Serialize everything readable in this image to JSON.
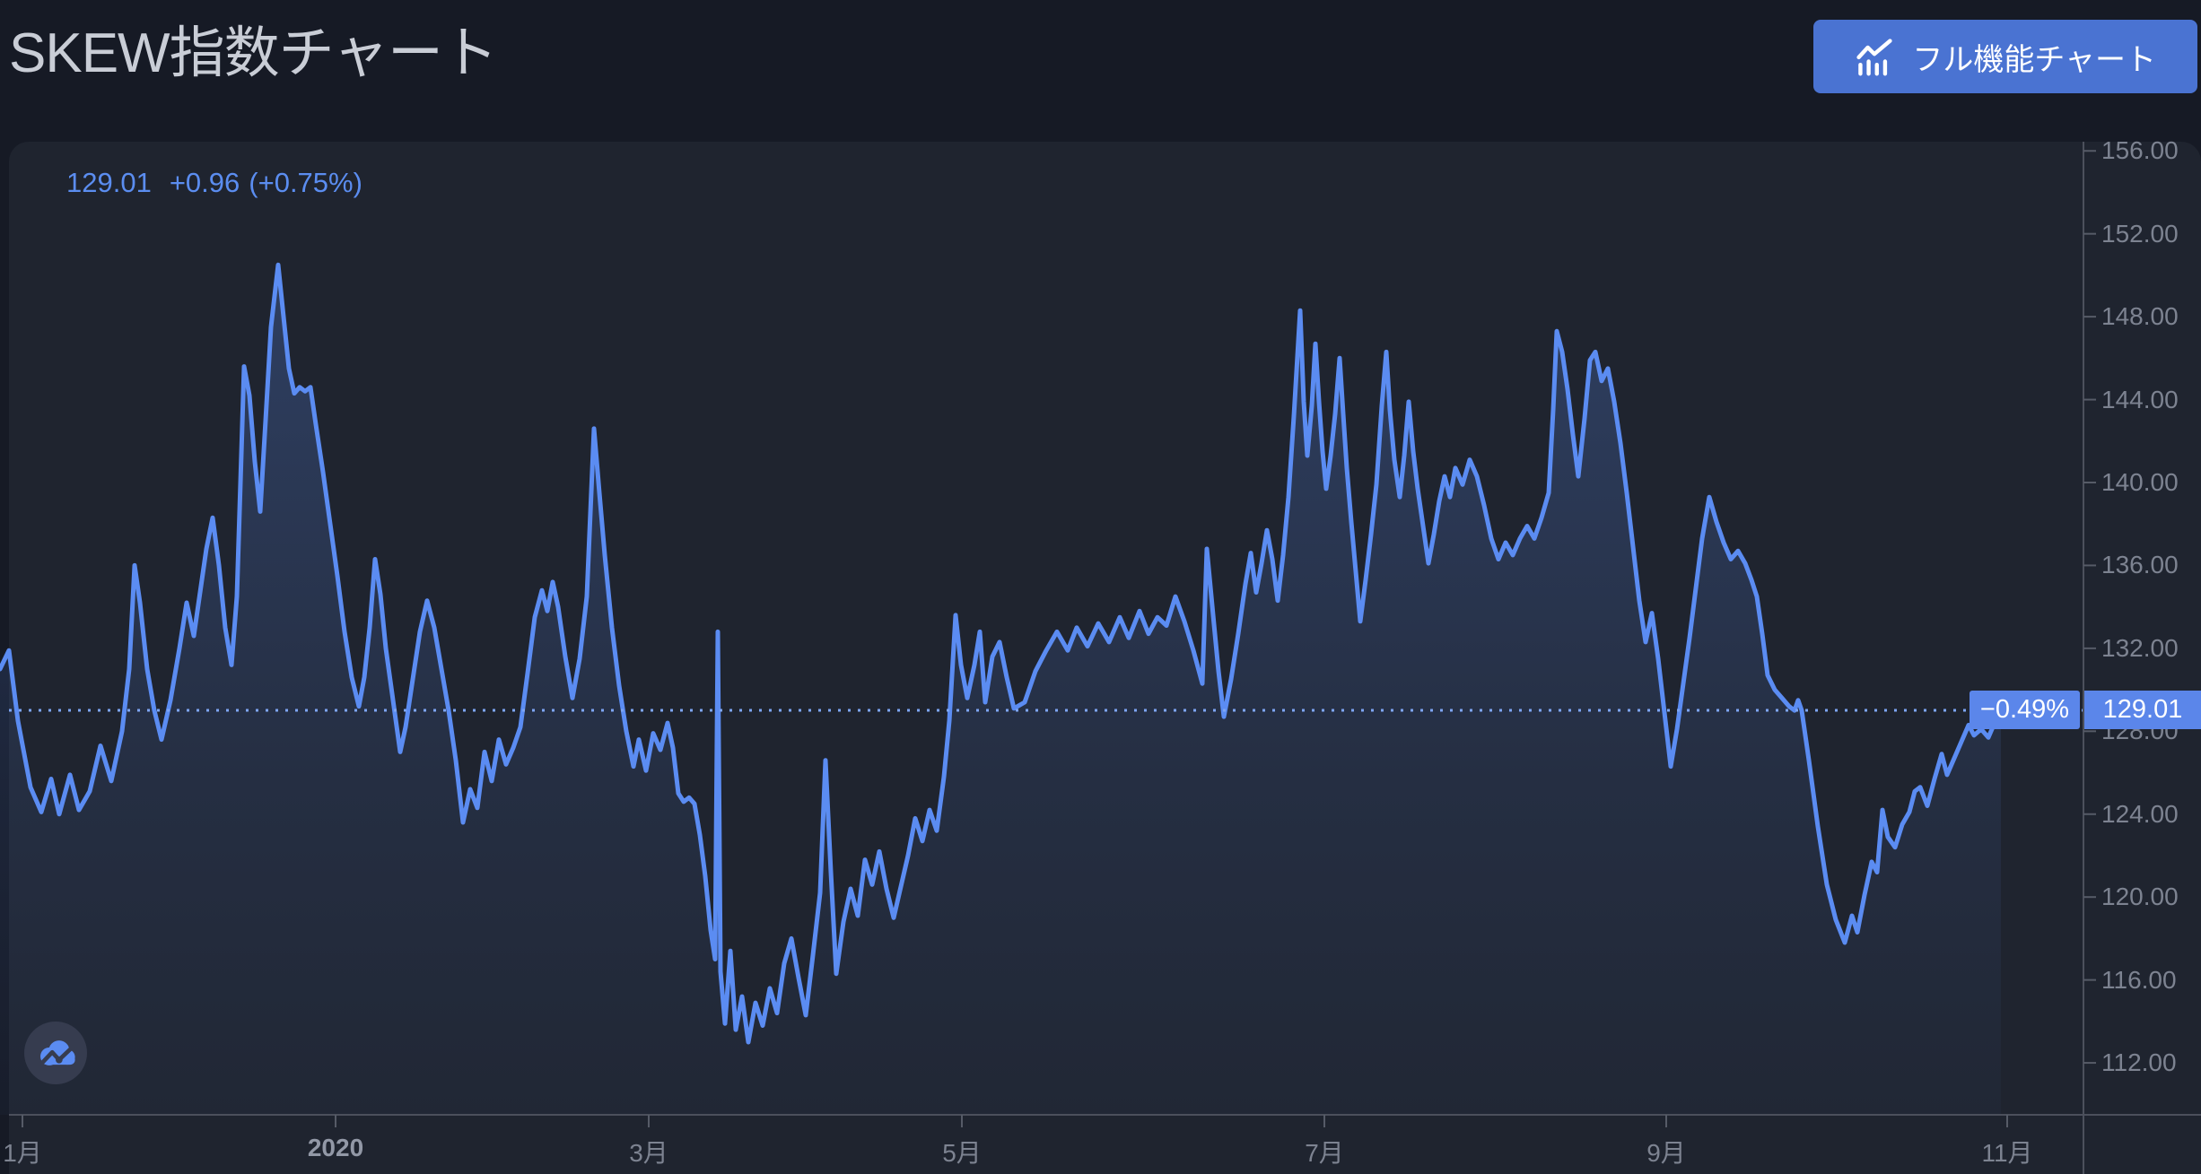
{
  "header": {
    "title": "SKEW指数チャート",
    "button_label": "フル機能チャート",
    "button_icon": "combo-chart-icon",
    "button_color": "#4a73d2"
  },
  "quote": {
    "price": "129.01",
    "change": "+0.96",
    "change_percent": "(+0.75%)",
    "color": "#5b8df0"
  },
  "price_axis_label": {
    "value": "129.01",
    "change_percent": "−0.49%",
    "flag_color": "#5b86ea"
  },
  "colors": {
    "page_bg": "#161a25",
    "panel_bg": "#1f242f",
    "line": "#5b8cf2",
    "dotted_price_line": "#7ea6f5",
    "axis_line": "#4c505c",
    "tick_text": "#7d8391",
    "title_text": "#c9cdd6"
  },
  "logo": {
    "name": "tradingview-cloud-logo"
  },
  "chart_data": {
    "type": "area",
    "title": "SKEW指数チャート",
    "legend": [],
    "grid": false,
    "current_value": 129.01,
    "current_value_label": "129.01",
    "change_from_prev": "+0.96 (+0.75%)",
    "session_change_percent": "−0.49%",
    "y_ticks": [
      156,
      152,
      148,
      144,
      140,
      136,
      132,
      128,
      124,
      120,
      116,
      112
    ],
    "y_tick_format": "0.00",
    "ylim": [
      109.5,
      156.5
    ],
    "x_tick_labels": [
      "1月",
      "2020",
      "3月",
      "5月",
      "7月",
      "9月",
      "11月"
    ],
    "series": [
      {
        "name": "SKEW",
        "color": "#5b8cf2",
        "points": [
          [
            0,
            131.0
          ],
          [
            10,
            131.9
          ],
          [
            20,
            128.5
          ],
          [
            34,
            125.3
          ],
          [
            46,
            124.1
          ],
          [
            57,
            125.7
          ],
          [
            66,
            124.0
          ],
          [
            78,
            125.9
          ],
          [
            88,
            124.2
          ],
          [
            100,
            125.1
          ],
          [
            112,
            127.3
          ],
          [
            124,
            125.6
          ],
          [
            136,
            128.0
          ],
          [
            144,
            131.0
          ],
          [
            150,
            136.0
          ],
          [
            156,
            134.2
          ],
          [
            164,
            131.0
          ],
          [
            172,
            129.0
          ],
          [
            180,
            127.6
          ],
          [
            190,
            129.5
          ],
          [
            200,
            132.0
          ],
          [
            208,
            134.2
          ],
          [
            216,
            132.6
          ],
          [
            224,
            135.0
          ],
          [
            230,
            136.8
          ],
          [
            237,
            138.3
          ],
          [
            244,
            136.0
          ],
          [
            251,
            133.0
          ],
          [
            258,
            131.2
          ],
          [
            264,
            134.5
          ],
          [
            268,
            140.0
          ],
          [
            272,
            145.6
          ],
          [
            278,
            144.2
          ],
          [
            284,
            141.0
          ],
          [
            290,
            138.6
          ],
          [
            296,
            143.0
          ],
          [
            302,
            147.5
          ],
          [
            310,
            150.5
          ],
          [
            316,
            148.0
          ],
          [
            322,
            145.5
          ],
          [
            328,
            144.3
          ],
          [
            334,
            144.6
          ],
          [
            340,
            144.4
          ],
          [
            346,
            144.6
          ],
          [
            352,
            142.8
          ],
          [
            360,
            140.5
          ],
          [
            368,
            138.0
          ],
          [
            376,
            135.5
          ],
          [
            384,
            132.8
          ],
          [
            392,
            130.6
          ],
          [
            400,
            129.2
          ],
          [
            406,
            130.6
          ],
          [
            412,
            133.0
          ],
          [
            418,
            136.3
          ],
          [
            424,
            134.6
          ],
          [
            430,
            132.0
          ],
          [
            438,
            129.5
          ],
          [
            446,
            127.0
          ],
          [
            452,
            128.2
          ],
          [
            460,
            130.5
          ],
          [
            468,
            132.8
          ],
          [
            476,
            134.3
          ],
          [
            484,
            133.0
          ],
          [
            492,
            131.0
          ],
          [
            500,
            129.0
          ],
          [
            508,
            126.6
          ],
          [
            516,
            123.6
          ],
          [
            524,
            125.2
          ],
          [
            532,
            124.3
          ],
          [
            540,
            127.0
          ],
          [
            548,
            125.6
          ],
          [
            556,
            127.6
          ],
          [
            564,
            126.4
          ],
          [
            572,
            127.2
          ],
          [
            580,
            128.2
          ],
          [
            588,
            130.8
          ],
          [
            596,
            133.5
          ],
          [
            604,
            134.8
          ],
          [
            610,
            133.8
          ],
          [
            616,
            135.2
          ],
          [
            622,
            134.0
          ],
          [
            630,
            131.6
          ],
          [
            638,
            129.6
          ],
          [
            646,
            131.5
          ],
          [
            654,
            134.5
          ],
          [
            662,
            142.6
          ],
          [
            668,
            139.5
          ],
          [
            674,
            136.5
          ],
          [
            682,
            133.0
          ],
          [
            690,
            130.2
          ],
          [
            698,
            128.0
          ],
          [
            706,
            126.3
          ],
          [
            712,
            127.6
          ],
          [
            720,
            126.1
          ],
          [
            728,
            127.9
          ],
          [
            736,
            127.1
          ],
          [
            744,
            128.4
          ],
          [
            750,
            127.2
          ],
          [
            756,
            125.0
          ],
          [
            762,
            124.6
          ],
          [
            768,
            124.8
          ],
          [
            774,
            124.5
          ],
          [
            780,
            123.0
          ],
          [
            786,
            121.0
          ],
          [
            792,
            118.4
          ],
          [
            797,
            117.0
          ],
          [
            800,
            132.8
          ],
          [
            803,
            116.4
          ],
          [
            808,
            113.9
          ],
          [
            814,
            117.4
          ],
          [
            820,
            113.6
          ],
          [
            827,
            115.2
          ],
          [
            834,
            113.0
          ],
          [
            842,
            114.9
          ],
          [
            850,
            113.8
          ],
          [
            858,
            115.6
          ],
          [
            866,
            114.4
          ],
          [
            874,
            116.8
          ],
          [
            882,
            118.0
          ],
          [
            890,
            116.1
          ],
          [
            898,
            114.3
          ],
          [
            906,
            117.2
          ],
          [
            914,
            120.2
          ],
          [
            920,
            126.6
          ],
          [
            926,
            121.2
          ],
          [
            932,
            116.3
          ],
          [
            940,
            118.8
          ],
          [
            948,
            120.4
          ],
          [
            956,
            119.1
          ],
          [
            964,
            121.8
          ],
          [
            972,
            120.6
          ],
          [
            980,
            122.2
          ],
          [
            988,
            120.4
          ],
          [
            996,
            119.0
          ],
          [
            1004,
            120.5
          ],
          [
            1012,
            122.0
          ],
          [
            1020,
            123.8
          ],
          [
            1028,
            122.7
          ],
          [
            1036,
            124.2
          ],
          [
            1044,
            123.2
          ],
          [
            1052,
            125.8
          ],
          [
            1058,
            128.5
          ],
          [
            1065,
            133.6
          ],
          [
            1071,
            131.2
          ],
          [
            1078,
            129.6
          ],
          [
            1086,
            131.2
          ],
          [
            1092,
            132.8
          ],
          [
            1098,
            129.4
          ],
          [
            1106,
            131.6
          ],
          [
            1114,
            132.3
          ],
          [
            1122,
            130.6
          ],
          [
            1130,
            129.1
          ],
          [
            1142,
            129.4
          ],
          [
            1154,
            130.9
          ],
          [
            1166,
            131.9
          ],
          [
            1178,
            132.8
          ],
          [
            1190,
            131.9
          ],
          [
            1200,
            133.0
          ],
          [
            1212,
            132.1
          ],
          [
            1224,
            133.2
          ],
          [
            1236,
            132.3
          ],
          [
            1248,
            133.5
          ],
          [
            1258,
            132.5
          ],
          [
            1270,
            133.8
          ],
          [
            1280,
            132.7
          ],
          [
            1290,
            133.5
          ],
          [
            1300,
            133.1
          ],
          [
            1310,
            134.5
          ],
          [
            1320,
            133.3
          ],
          [
            1330,
            131.9
          ],
          [
            1340,
            130.3
          ],
          [
            1345,
            136.8
          ],
          [
            1352,
            133.6
          ],
          [
            1358,
            130.9
          ],
          [
            1364,
            128.7
          ],
          [
            1372,
            130.5
          ],
          [
            1380,
            132.7
          ],
          [
            1388,
            135.1
          ],
          [
            1394,
            136.6
          ],
          [
            1400,
            134.7
          ],
          [
            1406,
            136.1
          ],
          [
            1412,
            137.7
          ],
          [
            1418,
            136.3
          ],
          [
            1424,
            134.3
          ],
          [
            1430,
            136.5
          ],
          [
            1436,
            139.3
          ],
          [
            1442,
            143.2
          ],
          [
            1449,
            148.3
          ],
          [
            1453,
            143.9
          ],
          [
            1457,
            141.3
          ],
          [
            1462,
            143.7
          ],
          [
            1466,
            146.7
          ],
          [
            1470,
            143.9
          ],
          [
            1474,
            141.5
          ],
          [
            1478,
            139.7
          ],
          [
            1483,
            141.3
          ],
          [
            1488,
            143.3
          ],
          [
            1493,
            146.0
          ],
          [
            1497,
            143.3
          ],
          [
            1501,
            140.7
          ],
          [
            1506,
            138.1
          ],
          [
            1511,
            135.7
          ],
          [
            1516,
            133.3
          ],
          [
            1522,
            135.3
          ],
          [
            1528,
            137.5
          ],
          [
            1534,
            139.9
          ],
          [
            1540,
            143.7
          ],
          [
            1545,
            146.3
          ],
          [
            1549,
            143.5
          ],
          [
            1554,
            141.1
          ],
          [
            1560,
            139.3
          ],
          [
            1565,
            141.3
          ],
          [
            1570,
            143.9
          ],
          [
            1575,
            141.5
          ],
          [
            1580,
            139.7
          ],
          [
            1586,
            137.9
          ],
          [
            1592,
            136.1
          ],
          [
            1598,
            137.5
          ],
          [
            1604,
            139.1
          ],
          [
            1610,
            140.3
          ],
          [
            1616,
            139.3
          ],
          [
            1622,
            140.7
          ],
          [
            1630,
            139.9
          ],
          [
            1638,
            141.1
          ],
          [
            1646,
            140.3
          ],
          [
            1654,
            138.9
          ],
          [
            1662,
            137.3
          ],
          [
            1670,
            136.3
          ],
          [
            1678,
            137.1
          ],
          [
            1686,
            136.5
          ],
          [
            1694,
            137.3
          ],
          [
            1702,
            137.9
          ],
          [
            1710,
            137.3
          ],
          [
            1718,
            138.3
          ],
          [
            1726,
            139.5
          ],
          [
            1731,
            143.5
          ],
          [
            1735,
            147.3
          ],
          [
            1741,
            146.3
          ],
          [
            1747,
            144.5
          ],
          [
            1753,
            142.3
          ],
          [
            1759,
            140.3
          ],
          [
            1766,
            143.1
          ],
          [
            1772,
            145.9
          ],
          [
            1778,
            146.3
          ],
          [
            1785,
            144.9
          ],
          [
            1792,
            145.5
          ],
          [
            1799,
            143.9
          ],
          [
            1806,
            141.9
          ],
          [
            1813,
            139.5
          ],
          [
            1820,
            136.9
          ],
          [
            1827,
            134.3
          ],
          [
            1834,
            132.3
          ],
          [
            1841,
            133.7
          ],
          [
            1848,
            131.5
          ],
          [
            1855,
            128.9
          ],
          [
            1862,
            126.3
          ],
          [
            1869,
            128.1
          ],
          [
            1876,
            130.3
          ],
          [
            1883,
            132.5
          ],
          [
            1890,
            134.9
          ],
          [
            1897,
            137.3
          ],
          [
            1905,
            139.3
          ],
          [
            1913,
            138.1
          ],
          [
            1921,
            137.1
          ],
          [
            1929,
            136.3
          ],
          [
            1937,
            136.7
          ],
          [
            1945,
            136.1
          ],
          [
            1952,
            135.3
          ],
          [
            1958,
            134.5
          ],
          [
            1964,
            132.7
          ],
          [
            1970,
            130.7
          ],
          [
            1978,
            130.0
          ],
          [
            1986,
            129.6
          ],
          [
            1994,
            129.2
          ],
          [
            2000,
            129.0
          ],
          [
            2004,
            129.5
          ],
          [
            2008,
            129.0
          ],
          [
            2016,
            126.6
          ],
          [
            2026,
            123.4
          ],
          [
            2036,
            120.6
          ],
          [
            2046,
            118.9
          ],
          [
            2056,
            117.8
          ],
          [
            2064,
            119.1
          ],
          [
            2070,
            118.3
          ],
          [
            2078,
            120.1
          ],
          [
            2086,
            121.7
          ],
          [
            2092,
            121.2
          ],
          [
            2098,
            124.2
          ],
          [
            2104,
            122.9
          ],
          [
            2112,
            122.4
          ],
          [
            2120,
            123.5
          ],
          [
            2128,
            124.1
          ],
          [
            2134,
            125.1
          ],
          [
            2140,
            125.3
          ],
          [
            2148,
            124.4
          ],
          [
            2156,
            125.7
          ],
          [
            2164,
            126.9
          ],
          [
            2170,
            125.9
          ],
          [
            2178,
            126.7
          ],
          [
            2186,
            127.5
          ],
          [
            2194,
            128.3
          ],
          [
            2200,
            127.8
          ],
          [
            2208,
            128.1
          ],
          [
            2216,
            127.7
          ],
          [
            2224,
            128.5
          ],
          [
            2230,
            129.0
          ]
        ]
      }
    ]
  }
}
